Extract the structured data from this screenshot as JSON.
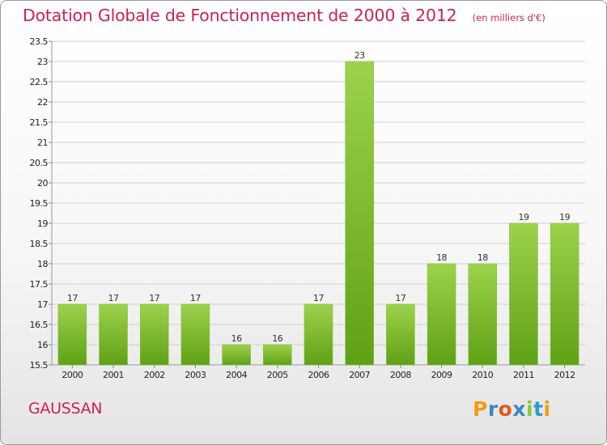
{
  "header": {
    "title": "Dotation Globale de Fonctionnement de 2000 à 2012",
    "subtitle": "(en milliers d'€)"
  },
  "footer": {
    "commune": "GAUSSAN",
    "logo_letters": [
      "P",
      "r",
      "o",
      "x",
      "i",
      "t",
      "i"
    ],
    "logo_colors": [
      "#f39c12",
      "#3a87c7",
      "#e8541a",
      "#3a87c7",
      "#8cc63f",
      "#2a9bd6",
      "#f39c12"
    ]
  },
  "colors": {
    "title": "#cc2255",
    "bar_light": "#9dd24c",
    "bar_dark": "#5fa116",
    "grid": "#d0d0d0"
  },
  "chart_data": {
    "type": "bar",
    "title": "Dotation Globale de Fonctionnement de 2000 à 2012",
    "subtitle": "(en milliers d'€)",
    "categories": [
      "2000",
      "2001",
      "2002",
      "2003",
      "2004",
      "2005",
      "2006",
      "2007",
      "2008",
      "2009",
      "2010",
      "2011",
      "2012"
    ],
    "values": [
      17,
      17,
      17,
      17,
      16,
      16,
      17,
      23,
      17,
      18,
      18,
      19,
      19
    ],
    "data_labels": [
      "17",
      "17",
      "17",
      "17",
      "16",
      "16",
      "17",
      "23",
      "17",
      "18",
      "18",
      "19",
      "19"
    ],
    "ylim": [
      15.5,
      23.5
    ],
    "yticks": [
      "15.5",
      "16",
      "16.5",
      "17",
      "17.5",
      "18",
      "18.5",
      "19",
      "19.5",
      "20",
      "20.5",
      "21",
      "21.5",
      "22",
      "22.5",
      "23",
      "23.5"
    ],
    "grid": true,
    "legend": "none"
  }
}
